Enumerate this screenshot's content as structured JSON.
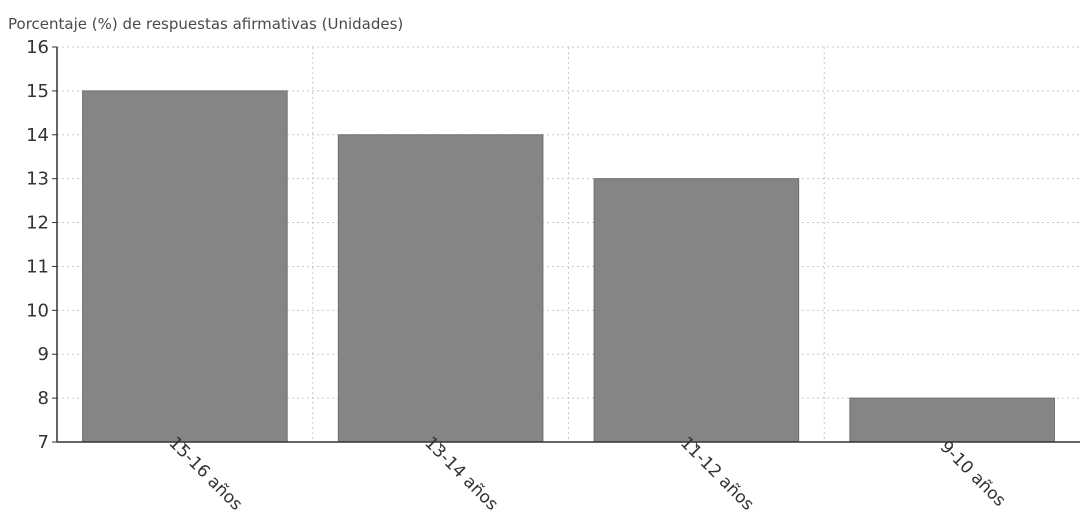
{
  "chart_data": {
    "type": "bar",
    "title": "",
    "ylabel": "Porcentaje (%) de respuestas afirmativas (Unidades)",
    "xlabel": "",
    "categories": [
      "15-16 años",
      "13-14 años",
      "11-12 años",
      "9-10 años"
    ],
    "values": [
      15,
      14,
      13,
      8
    ],
    "ylim": [
      7,
      16
    ],
    "yticks": [
      7,
      8,
      9,
      10,
      11,
      12,
      13,
      14,
      15,
      16
    ],
    "grid": true,
    "legend": "none",
    "colors": {
      "bar": "#858585",
      "bar_edge": "#6f6f6f"
    }
  }
}
